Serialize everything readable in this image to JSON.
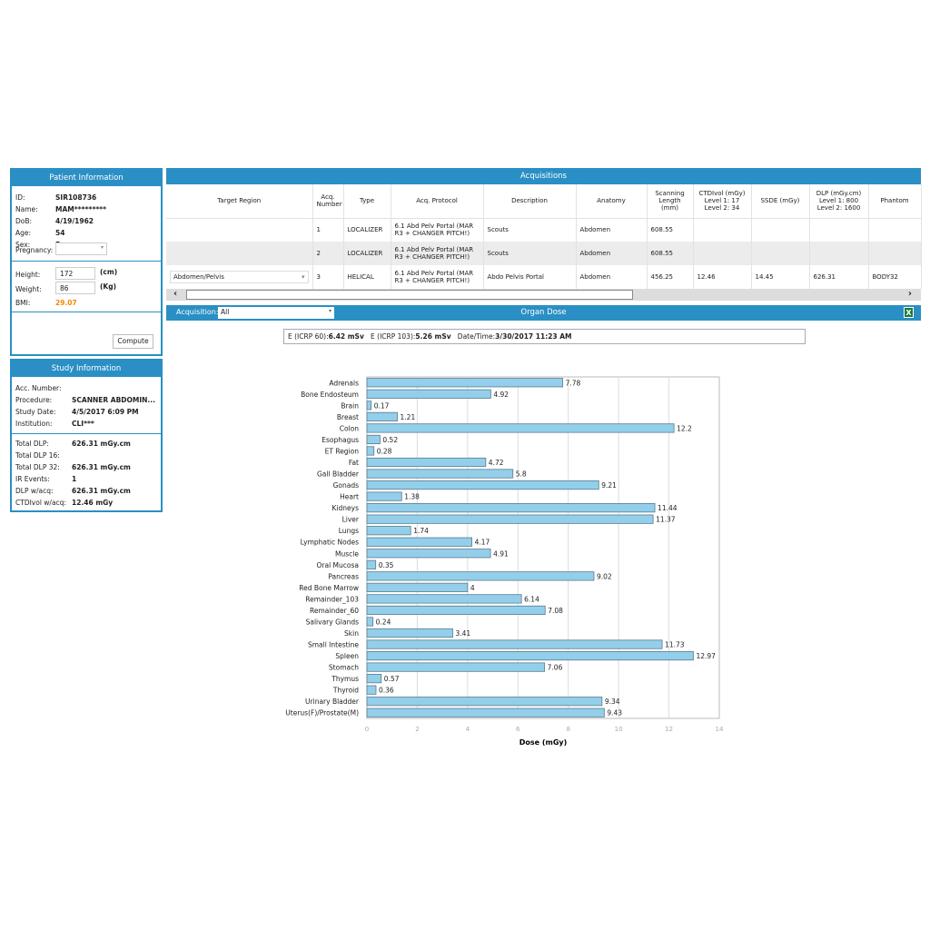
{
  "patient": {
    "title": "Patient Information",
    "fields": [
      {
        "label": "ID:",
        "value": "SIR108736"
      },
      {
        "label": "Name:",
        "value": "MAM*********"
      },
      {
        "label": "DoB:",
        "value": "4/19/1962"
      },
      {
        "label": "Age:",
        "value": "54"
      },
      {
        "label": "Sex:",
        "value": "F"
      }
    ],
    "pregnancy_label": "Pregnancy:",
    "pregnancy_value": "",
    "height_label": "Height:",
    "height_value": "172",
    "height_unit": "(cm)",
    "weight_label": "Weight:",
    "weight_value": "86",
    "weight_unit": "(Kg)",
    "bmi_label": "BMI:",
    "bmi_value": "29.07",
    "bmi_color": "#f08a00",
    "compute_label": "Compute"
  },
  "study": {
    "title": "Study Information",
    "fields": [
      {
        "label": "Acc. Number:",
        "value": ""
      },
      {
        "label": "Procedure:",
        "value": "SCANNER ABDOMIN..."
      },
      {
        "label": "Study Date:",
        "value": "4/5/2017 6:09 PM"
      },
      {
        "label": "Institution:",
        "value": "CLI***"
      }
    ],
    "dose_fields": [
      {
        "label": "Total DLP:",
        "value": "626.31 mGy.cm"
      },
      {
        "label": "Total DLP 16:",
        "value": ""
      },
      {
        "label": "Total DLP 32:",
        "value": "626.31 mGy.cm"
      },
      {
        "label": "IR Events:",
        "value": "1"
      },
      {
        "label": "DLP w/acq:",
        "value": "626.31 mGy.cm"
      },
      {
        "label": "CTDIvol w/acq:",
        "value": "12.46 mGy"
      }
    ]
  },
  "acquisitions": {
    "title": "Acquisitions",
    "columns": [
      "Target Region",
      "Acq. Number",
      "Type",
      "Acq. Protocol",
      "Description",
      "Anatomy",
      "Scanning Length (mm)",
      "CTDIvol (mGy) Level 1: 17 Level 2: 34",
      "SSDE (mGy)",
      "DLP (mGy.cm) Level 1: 800 Level 2: 1600",
      "Phantom"
    ],
    "rows": [
      [
        "",
        "1",
        "LOCALIZER",
        "6.1 Abd Pelv Portal (MAR R3 + CHANGER PITCH!)",
        "Scouts",
        "Abdomen",
        "608.55",
        "",
        "",
        "",
        ""
      ],
      [
        "",
        "2",
        "LOCALIZER",
        "6.1 Abd Pelv Portal (MAR R3 + CHANGER PITCH!)",
        "Scouts",
        "Abdomen",
        "608.55",
        "",
        "",
        "",
        ""
      ],
      [
        "Abdomen/Pelvis",
        "3",
        "HELICAL",
        "6.1 Abd Pelv Portal (MAR R3 + CHANGER PITCH!)",
        "Abdo Pelvis Portal",
        "Abdomen",
        "456.25",
        "12.46",
        "14.45",
        "626.31",
        "BODY32"
      ]
    ]
  },
  "organ_dose": {
    "title": "Organ Dose",
    "acq_label": "Acquisition:",
    "acq_value": "All",
    "e60_label": "E (ICRP 60):",
    "e60_value": "6.42 mSv",
    "e103_label": "E (ICRP 103):",
    "e103_value": "5.26 mSv",
    "dt_label": "Date/Time:",
    "dt_value": "3/30/2017 11:23 AM"
  },
  "chart_data": {
    "type": "bar",
    "orientation": "horizontal",
    "xlabel": "Dose (mGy)",
    "xlim": [
      0,
      14
    ],
    "xticks": [
      "0",
      "2",
      "4",
      "6",
      "8",
      "10",
      "12",
      "14"
    ],
    "grid": true,
    "bar_color": "#93cfeb",
    "categories": [
      "Adrenals",
      "Bone Endosteum",
      "Brain",
      "Breast",
      "Colon",
      "Esophagus",
      "ET Region",
      "Fat",
      "Gall Bladder",
      "Gonads",
      "Heart",
      "Kidneys",
      "Liver",
      "Lungs",
      "Lymphatic Nodes",
      "Muscle",
      "Oral Mucosa",
      "Pancreas",
      "Red Bone Marrow",
      "Remainder_103",
      "Remainder_60",
      "Salivary Glands",
      "Skin",
      "Small Intestine",
      "Spleen",
      "Stomach",
      "Thymus",
      "Thyroid",
      "Urinary Bladder",
      "Uterus(F)/Prostate(M)"
    ],
    "values": [
      7.78,
      4.92,
      0.17,
      1.21,
      12.2,
      0.52,
      0.28,
      4.72,
      5.8,
      9.21,
      1.38,
      11.44,
      11.37,
      1.74,
      4.17,
      4.91,
      0.35,
      9.02,
      4,
      6.14,
      7.08,
      0.24,
      3.41,
      11.73,
      12.97,
      7.06,
      0.57,
      0.36,
      9.34,
      9.43
    ]
  }
}
